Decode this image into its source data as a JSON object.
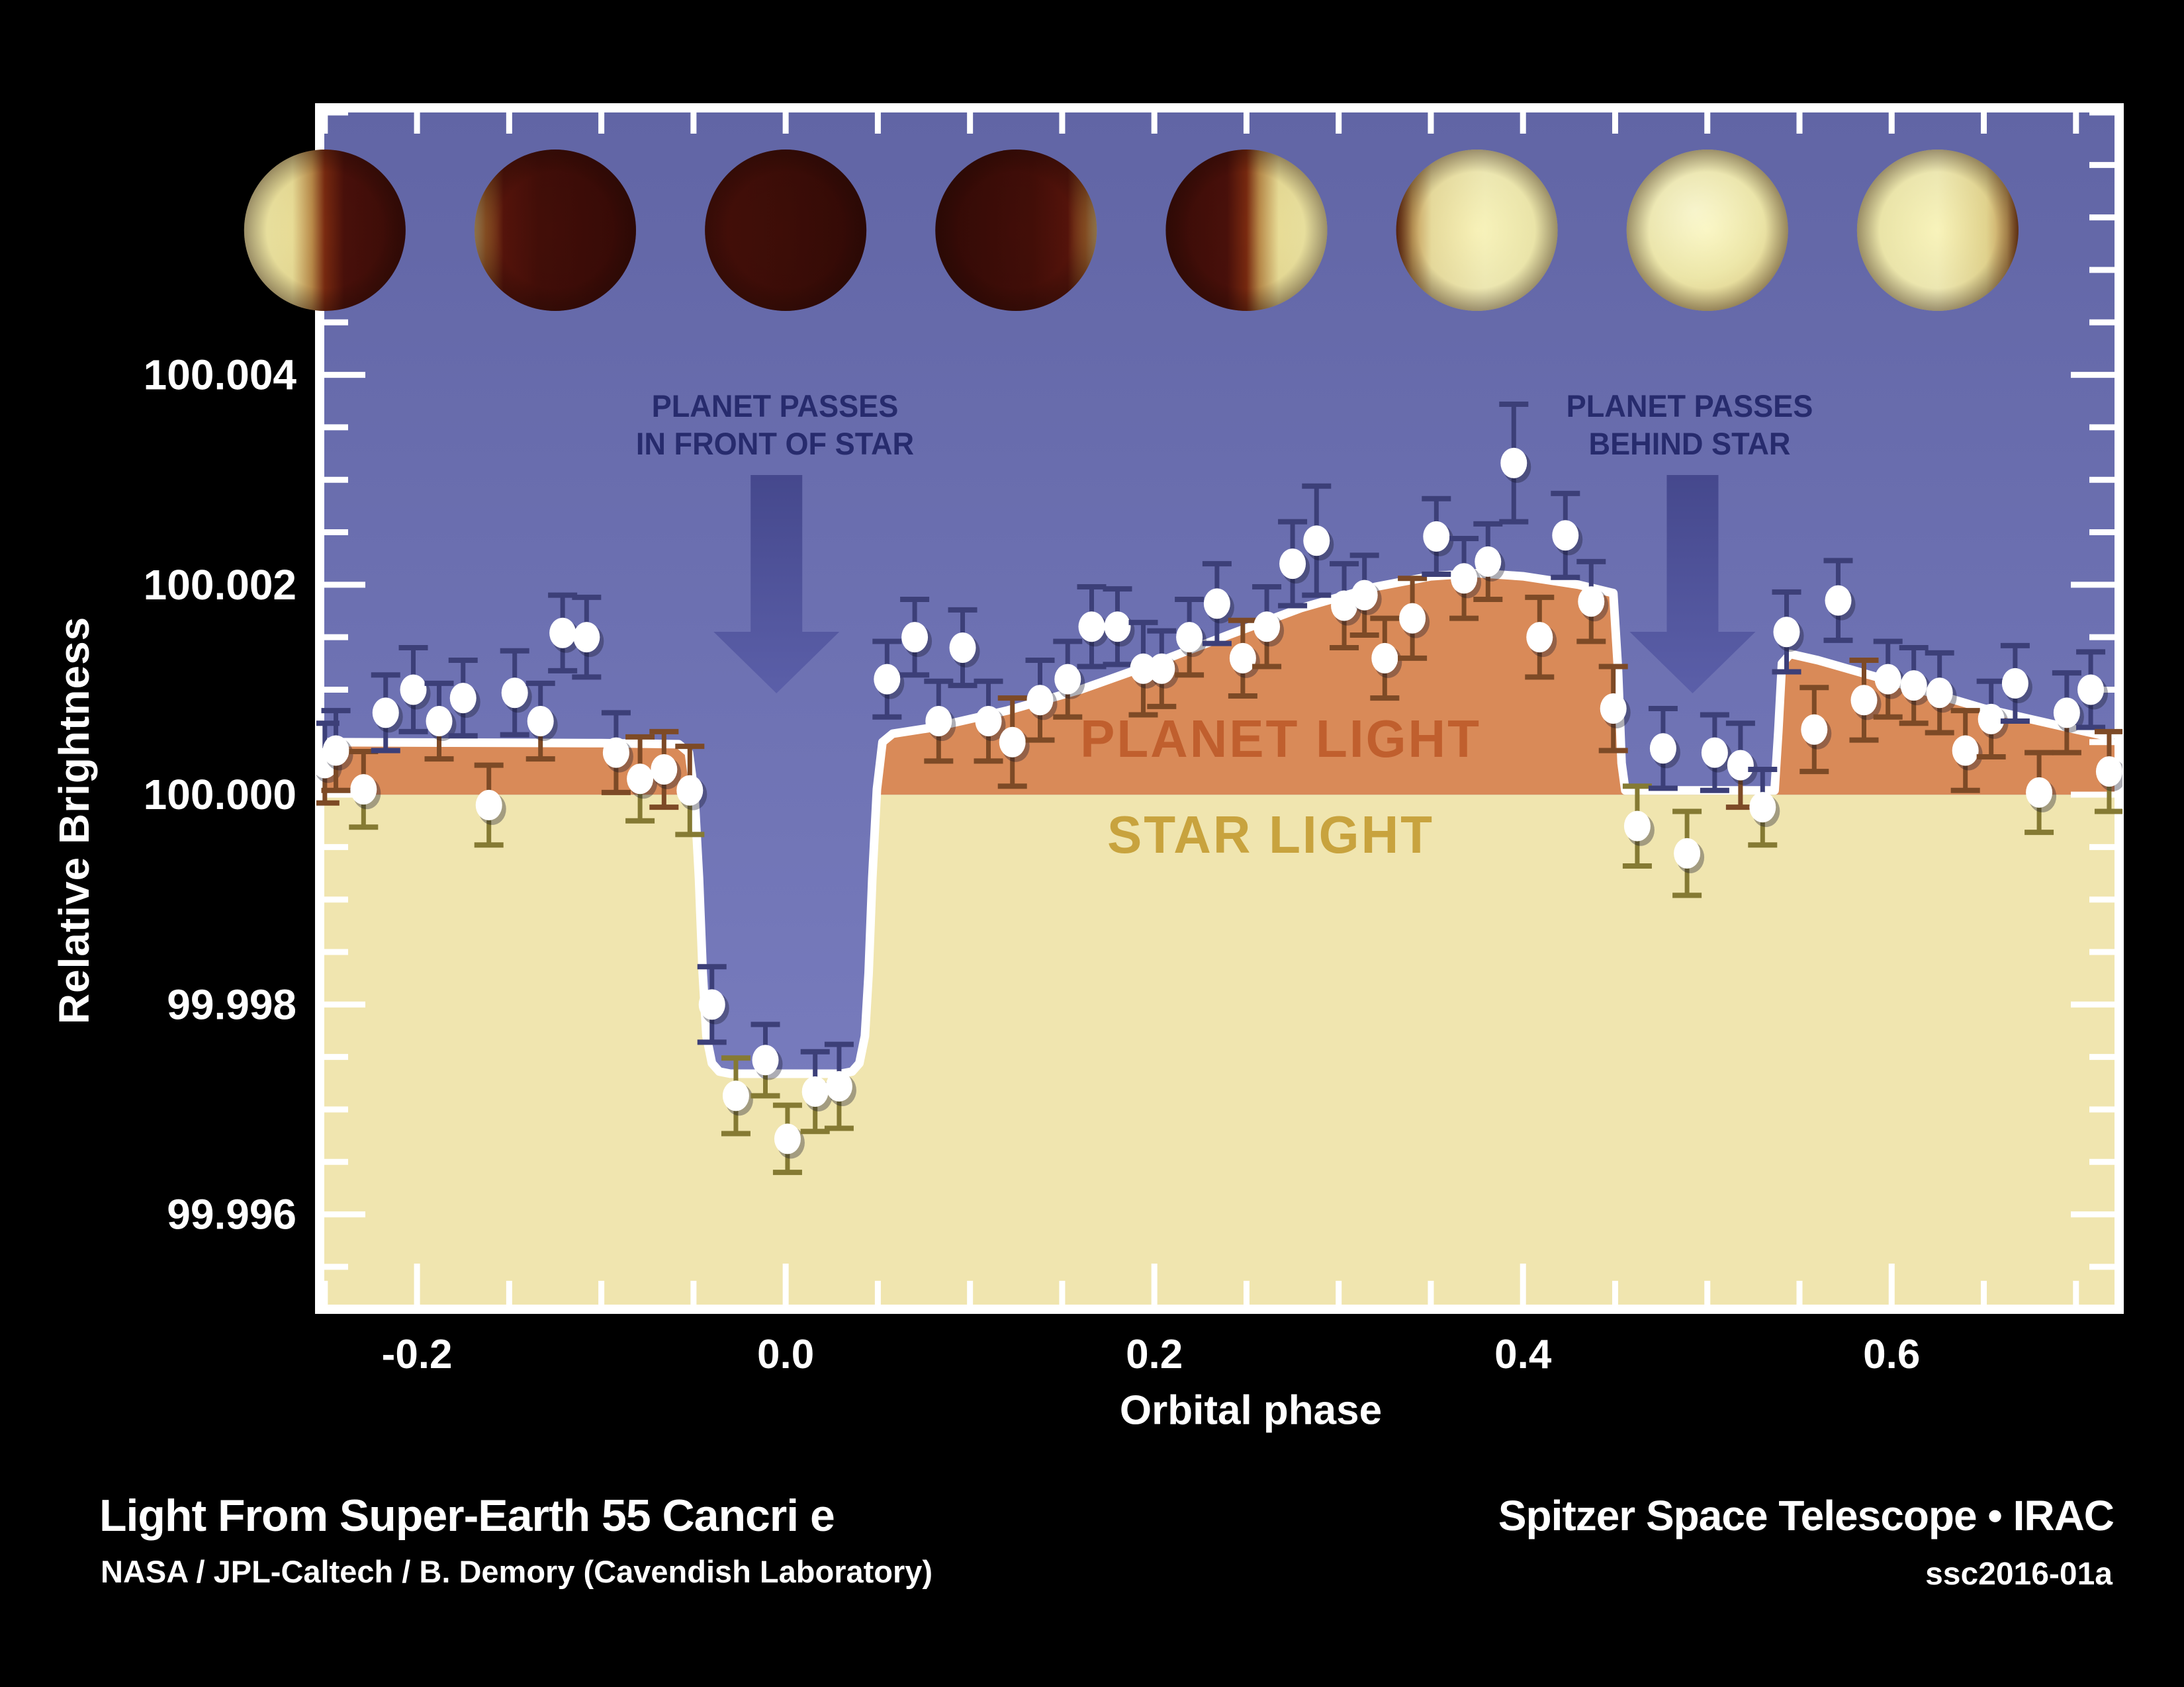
{
  "figure": {
    "credit_left_title": "Light From Super-Earth 55 Cancri e",
    "credit_left_sub": "NASA / JPL-Caltech / B. Demory (Cavendish Laboratory)",
    "credit_right_title": "Spitzer Space Telescope • IRAC",
    "credit_right_sub": "ssc2016-01a"
  },
  "annotations": {
    "transit_line1": "PLANET PASSES",
    "transit_line2": "IN FRONT OF STAR",
    "eclipse_line1": "PLANET PASSES",
    "eclipse_line2": "BEHIND STAR",
    "planet_light": "PLANET LIGHT",
    "star_light": "STAR LIGHT"
  },
  "chart_data": {
    "type": "scatter",
    "xlabel": "Orbital phase",
    "ylabel": "Relative Brightness",
    "xlim": [
      -0.2503,
      0.7209
    ],
    "ylim": [
      99.99514,
      100.0065
    ],
    "grid": false,
    "legend": "none",
    "x_ticks": [
      -0.2,
      0.0,
      0.2,
      0.4,
      0.6
    ],
    "x_tick_labels": [
      "-0.2",
      "0.0",
      "0.2",
      "0.4",
      "0.6"
    ],
    "x_minor_step": 0.05,
    "y_ticks": [
      99.996,
      99.998,
      100.0,
      100.002,
      100.004
    ],
    "y_tick_labels": [
      "99.996",
      "99.998",
      "100.000",
      "100.002",
      "100.004"
    ],
    "y_minor_step": 0.0005,
    "star_level": 100.0,
    "transit_depth_floor": 99.99734,
    "eclipse_phase_range": [
      0.4515,
      0.538
    ],
    "transit_phase_range": [
      -0.051,
      0.051
    ],
    "arrow_phases": [
      -0.005,
      0.492
    ],
    "model_curve": [
      [
        -0.2503,
        100.0005
      ],
      [
        -0.1,
        100.00049
      ],
      [
        -0.058,
        100.00048
      ],
      [
        -0.0525,
        100.0004
      ],
      [
        -0.0495,
        100.0
      ],
      [
        -0.047,
        99.9992
      ],
      [
        -0.045,
        99.9983
      ],
      [
        -0.043,
        99.9977
      ],
      [
        -0.04,
        99.99744
      ],
      [
        -0.036,
        99.99736
      ],
      [
        -0.03,
        99.99734
      ],
      [
        0.03,
        99.99734
      ],
      [
        0.036,
        99.99736
      ],
      [
        0.04,
        99.99744
      ],
      [
        0.043,
        99.9977
      ],
      [
        0.045,
        99.9983
      ],
      [
        0.047,
        99.9992
      ],
      [
        0.0495,
        100.00005
      ],
      [
        0.0525,
        100.0005
      ],
      [
        0.058,
        100.00058
      ],
      [
        0.08,
        100.00064
      ],
      [
        0.12,
        100.0008
      ],
      [
        0.16,
        100.001
      ],
      [
        0.2,
        100.00125
      ],
      [
        0.24,
        100.00152
      ],
      [
        0.28,
        100.00178
      ],
      [
        0.32,
        100.00198
      ],
      [
        0.35,
        100.00208
      ],
      [
        0.375,
        100.00211
      ],
      [
        0.4,
        100.00208
      ],
      [
        0.43,
        100.002
      ],
      [
        0.449,
        100.00192
      ],
      [
        0.4515,
        100.0012
      ],
      [
        0.4535,
        100.0003
      ],
      [
        0.4555,
        100.00004
      ],
      [
        0.5365,
        100.00004
      ],
      [
        0.5385,
        100.0006
      ],
      [
        0.5405,
        100.00125
      ],
      [
        0.545,
        100.00134
      ],
      [
        0.56,
        100.00128
      ],
      [
        0.6,
        100.00108
      ],
      [
        0.65,
        100.00082
      ],
      [
        0.7,
        100.00062
      ],
      [
        0.7209,
        100.00054
      ]
    ],
    "points": [
      [
        -0.25,
        100.0003,
        0.00038
      ],
      [
        -0.244,
        100.00042,
        0.00038
      ],
      [
        -0.229,
        100.00005,
        0.00036
      ],
      [
        -0.217,
        100.00078,
        0.00036
      ],
      [
        -0.202,
        100.001,
        0.0004
      ],
      [
        -0.188,
        100.0007,
        0.00036
      ],
      [
        -0.175,
        100.00092,
        0.00036
      ],
      [
        -0.161,
        99.9999,
        0.00038
      ],
      [
        -0.147,
        100.00097,
        0.0004
      ],
      [
        -0.133,
        100.0007,
        0.00036
      ],
      [
        -0.121,
        100.00154,
        0.00036
      ],
      [
        -0.108,
        100.0015,
        0.00038
      ],
      [
        -0.092,
        100.0004,
        0.00038
      ],
      [
        -0.079,
        100.00015,
        0.0004
      ],
      [
        -0.066,
        100.00024,
        0.00036
      ],
      [
        -0.052,
        100.00004,
        0.00042
      ],
      [
        -0.04,
        99.998,
        0.00036
      ],
      [
        -0.027,
        99.99713,
        0.00036
      ],
      [
        -0.011,
        99.99747,
        0.00034
      ],
      [
        0.001,
        99.99672,
        0.00032
      ],
      [
        0.016,
        99.99717,
        0.00038
      ],
      [
        0.029,
        99.99722,
        0.0004
      ],
      [
        0.055,
        100.0011,
        0.00036
      ],
      [
        0.07,
        100.0015,
        0.00036
      ],
      [
        0.083,
        100.0007,
        0.00038
      ],
      [
        0.096,
        100.0014,
        0.00036
      ],
      [
        0.11,
        100.0007,
        0.00038
      ],
      [
        0.123,
        100.0005,
        0.00042
      ],
      [
        0.138,
        100.0009,
        0.00038
      ],
      [
        0.153,
        100.0011,
        0.00036
      ],
      [
        0.166,
        100.0016,
        0.00038
      ],
      [
        0.18,
        100.0016,
        0.00036
      ],
      [
        0.194,
        100.0012,
        0.00044
      ],
      [
        0.204,
        100.0012,
        0.00036
      ],
      [
        0.219,
        100.0015,
        0.00036
      ],
      [
        0.234,
        100.00182,
        0.00038
      ],
      [
        0.248,
        100.0013,
        0.00036
      ],
      [
        0.261,
        100.0016,
        0.00038
      ],
      [
        0.275,
        100.0022,
        0.0004
      ],
      [
        0.288,
        100.00242,
        0.00052
      ],
      [
        0.303,
        100.0018,
        0.0004
      ],
      [
        0.314,
        100.0019,
        0.00038
      ],
      [
        0.325,
        100.0013,
        0.00038
      ],
      [
        0.34,
        100.00168,
        0.00038
      ],
      [
        0.353,
        100.00246,
        0.00036
      ],
      [
        0.368,
        100.00206,
        0.00038
      ],
      [
        0.381,
        100.00222,
        0.00036
      ],
      [
        0.395,
        100.00316,
        0.00056
      ],
      [
        0.409,
        100.0015,
        0.00038
      ],
      [
        0.423,
        100.00247,
        0.0004
      ],
      [
        0.437,
        100.00184,
        0.00038
      ],
      [
        0.449,
        100.00082,
        0.0004
      ],
      [
        0.462,
        99.9997,
        0.00038
      ],
      [
        0.476,
        100.00044,
        0.00038
      ],
      [
        0.489,
        99.99944,
        0.0004
      ],
      [
        0.504,
        100.0004,
        0.00036
      ],
      [
        0.518,
        100.00028,
        0.0004
      ],
      [
        0.53,
        99.99988,
        0.00036
      ],
      [
        0.543,
        100.00155,
        0.00038
      ],
      [
        0.558,
        100.00062,
        0.0004
      ],
      [
        0.571,
        100.00185,
        0.00038
      ],
      [
        0.585,
        100.0009,
        0.00038
      ],
      [
        0.598,
        100.0011,
        0.00036
      ],
      [
        0.612,
        100.00104,
        0.00036
      ],
      [
        0.626,
        100.00097,
        0.00038
      ],
      [
        0.64,
        100.00042,
        0.00038
      ],
      [
        0.654,
        100.00072,
        0.00036
      ],
      [
        0.667,
        100.00106,
        0.00036
      ],
      [
        0.68,
        100.00002,
        0.00038
      ],
      [
        0.695,
        100.00078,
        0.00038
      ],
      [
        0.708,
        100.001,
        0.00036
      ],
      [
        0.718,
        100.00022,
        0.00038
      ]
    ],
    "planet_phases": [
      {
        "phase": -0.25,
        "appearance": "half lit, bright side left"
      },
      {
        "phase": -0.125,
        "appearance": "thin crescent on left"
      },
      {
        "phase": 0.0,
        "appearance": "dark side facing us (transit)"
      },
      {
        "phase": 0.125,
        "appearance": "thin crescent on right"
      },
      {
        "phase": 0.25,
        "appearance": "half lit, bright side right"
      },
      {
        "phase": 0.375,
        "appearance": "gibbous, dark sliver left"
      },
      {
        "phase": 0.5,
        "appearance": "fully lit (passes behind star)"
      },
      {
        "phase": 0.625,
        "appearance": "gibbous, dark sliver right"
      }
    ],
    "colors": {
      "background": "#000000",
      "sky_top": "#6165a5",
      "sky_bottom": "#7c80c2",
      "planet_light_fill": "#d98a58",
      "star_light_fill": "#f0e5af",
      "curve": "#ffffff",
      "axis": "#ffffff",
      "point_fill": "#ffffff",
      "error_bar_sky": "#3c3f78",
      "error_bar_planet": "#7d4a26",
      "error_bar_star": "#857a33",
      "arrow_top": "#43468b",
      "arrow_bottom": "#5a5ea8",
      "annotation_text": "#272b6d",
      "planet_light_text": "#c05f2e",
      "star_light_text": "#c8a33e",
      "axis_text": "#ffffff"
    }
  }
}
